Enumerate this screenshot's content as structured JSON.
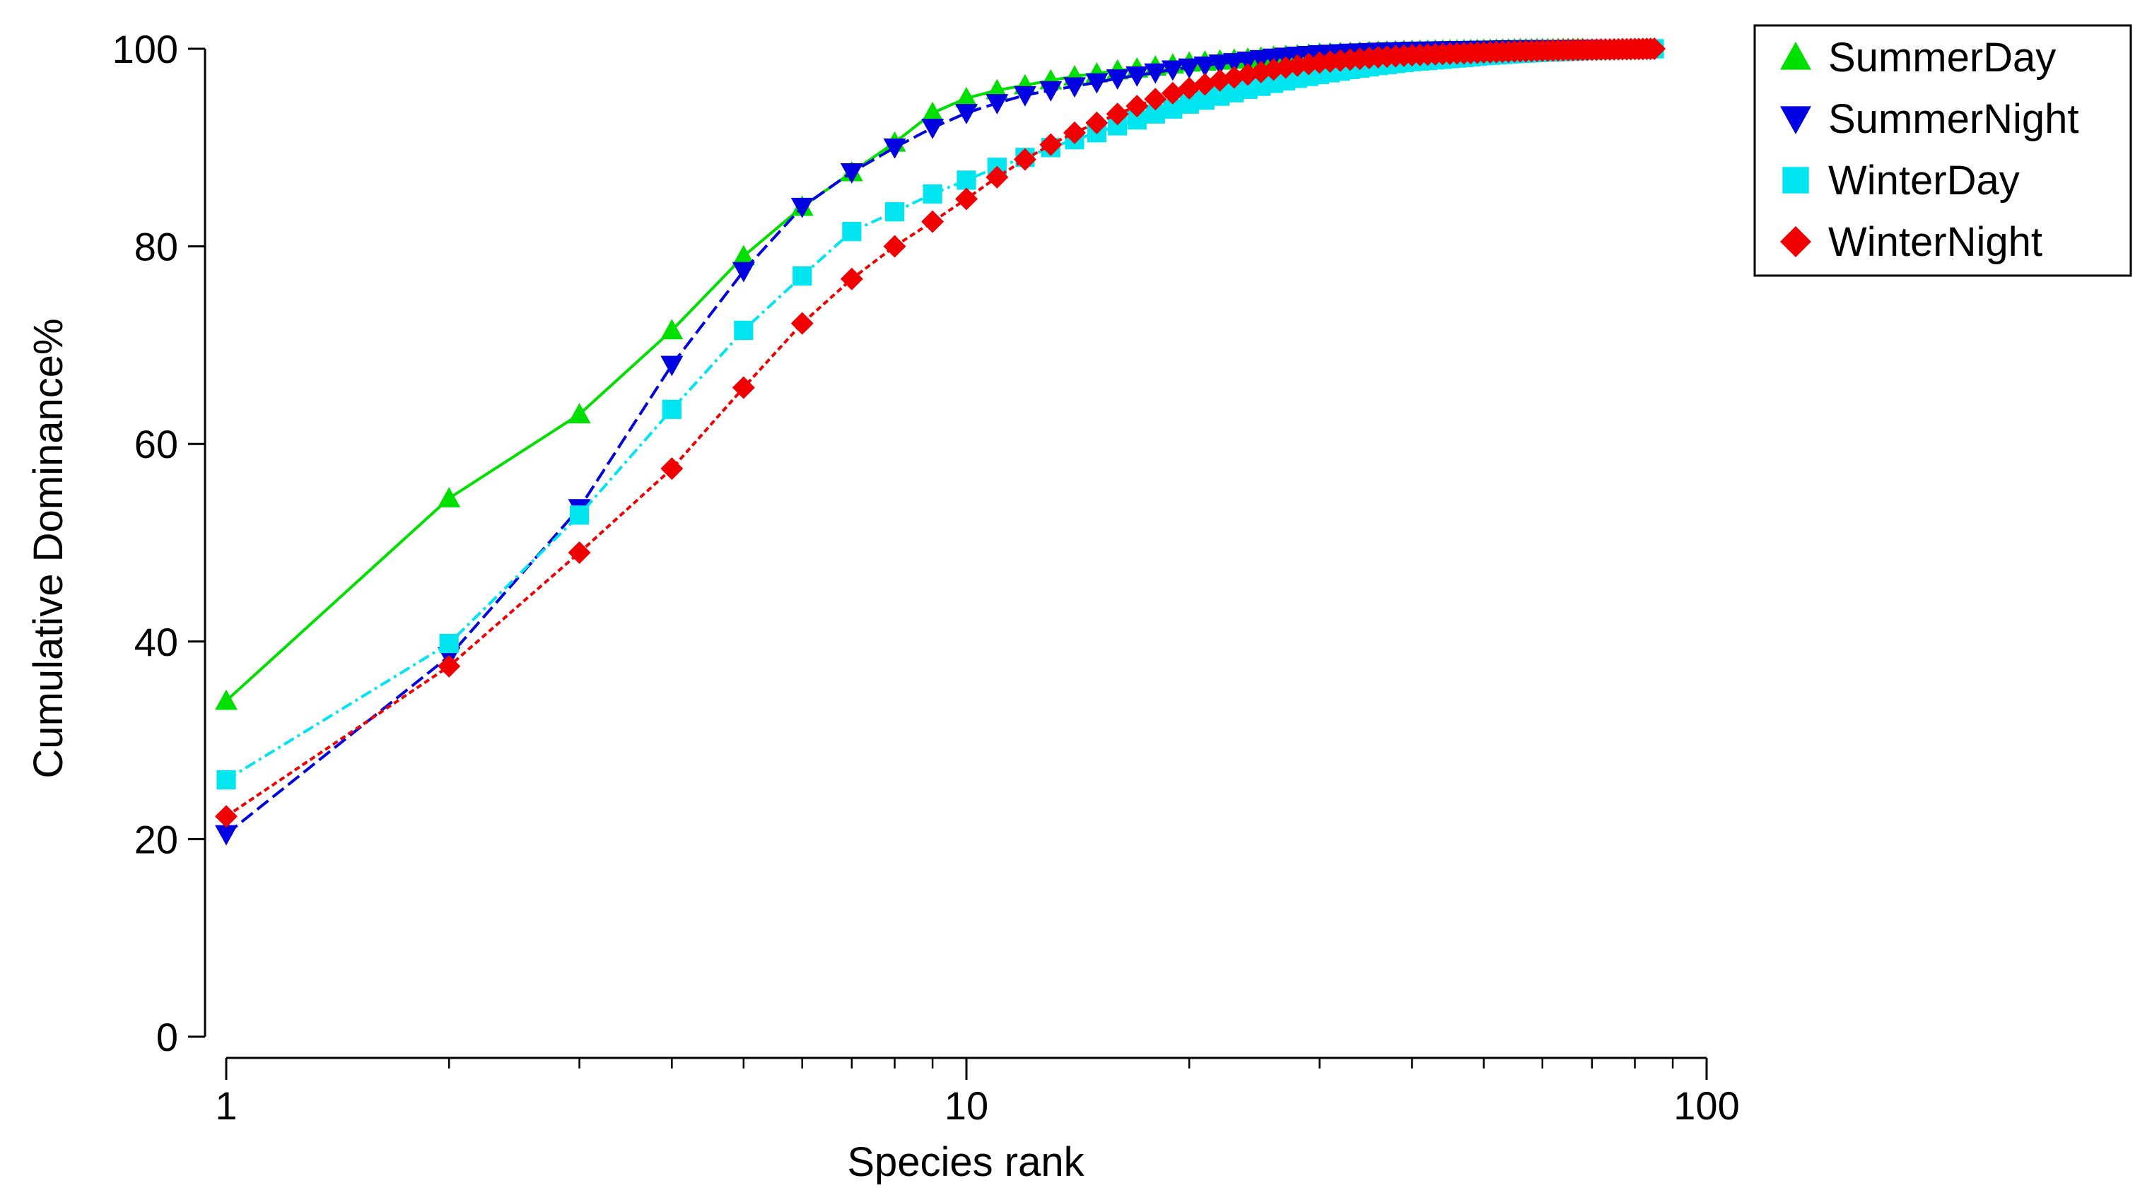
{
  "chart_data": {
    "type": "line",
    "title": "",
    "xlabel": "Species rank",
    "ylabel": "Cumulative Dominance%",
    "xscale": "log",
    "xlim": [
      1,
      100
    ],
    "ylim": [
      0,
      100
    ],
    "xticks": [
      1,
      10,
      100
    ],
    "xtick_labels": [
      "1",
      "10",
      "100"
    ],
    "yticks": [
      0,
      20,
      40,
      60,
      80,
      100
    ],
    "ytick_labels": [
      "0",
      "20",
      "40",
      "60",
      "80",
      "100"
    ],
    "grid": false,
    "legend_position": "top-right",
    "series": [
      {
        "name": "SummerDay",
        "color": "#00e000",
        "marker": "triangle-up",
        "linestyle": "solid",
        "max_rank": 68,
        "points": [
          [
            1,
            34.0
          ],
          [
            2,
            54.5
          ],
          [
            3,
            63.0
          ],
          [
            4,
            71.5
          ],
          [
            5,
            79.0
          ],
          [
            6,
            84.0
          ],
          [
            7,
            87.5
          ],
          [
            8,
            90.5
          ],
          [
            9,
            93.5
          ],
          [
            10,
            95.0
          ],
          [
            11,
            95.8
          ],
          [
            12,
            96.3
          ],
          [
            13,
            96.8
          ],
          [
            14,
            97.2
          ],
          [
            15,
            97.5
          ],
          [
            16,
            97.8
          ],
          [
            17,
            98.0
          ],
          [
            18,
            98.2
          ],
          [
            19,
            98.4
          ],
          [
            20,
            98.6
          ],
          [
            22,
            98.8
          ],
          [
            24,
            99.0
          ],
          [
            26,
            99.2
          ],
          [
            28,
            99.35
          ],
          [
            30,
            99.5
          ],
          [
            33,
            99.6
          ],
          [
            36,
            99.7
          ],
          [
            40,
            99.8
          ],
          [
            45,
            99.85
          ],
          [
            50,
            99.9
          ],
          [
            55,
            99.95
          ],
          [
            60,
            99.97
          ],
          [
            68,
            100.0
          ]
        ]
      },
      {
        "name": "SummerNight",
        "color": "#0000e0",
        "marker": "triangle-down",
        "linestyle": "dashed",
        "max_rank": 70,
        "points": [
          [
            1,
            20.5
          ],
          [
            2,
            38.5
          ],
          [
            3,
            53.5
          ],
          [
            4,
            68.0
          ],
          [
            5,
            77.5
          ],
          [
            6,
            84.0
          ],
          [
            7,
            87.5
          ],
          [
            8,
            90.0
          ],
          [
            9,
            92.0
          ],
          [
            10,
            93.5
          ],
          [
            11,
            94.5
          ],
          [
            12,
            95.3
          ],
          [
            13,
            95.8
          ],
          [
            14,
            96.2
          ],
          [
            15,
            96.6
          ],
          [
            16,
            97.0
          ],
          [
            17,
            97.3
          ],
          [
            18,
            97.6
          ],
          [
            19,
            97.9
          ],
          [
            20,
            98.1
          ],
          [
            22,
            98.5
          ],
          [
            24,
            98.8
          ],
          [
            26,
            99.1
          ],
          [
            28,
            99.3
          ],
          [
            30,
            99.45
          ],
          [
            33,
            99.6
          ],
          [
            36,
            99.7
          ],
          [
            40,
            99.8
          ],
          [
            45,
            99.85
          ],
          [
            50,
            99.9
          ],
          [
            55,
            99.95
          ],
          [
            60,
            99.97
          ],
          [
            70,
            100.0
          ]
        ]
      },
      {
        "name": "WinterDay",
        "color": "#00e5f0",
        "marker": "square",
        "linestyle": "dash-dot",
        "max_rank": 85,
        "points": [
          [
            1,
            26.0
          ],
          [
            2,
            39.8
          ],
          [
            3,
            52.8
          ],
          [
            4,
            63.5
          ],
          [
            5,
            71.5
          ],
          [
            6,
            77.0
          ],
          [
            7,
            81.5
          ],
          [
            8,
            83.5
          ],
          [
            9,
            85.3
          ],
          [
            10,
            86.7
          ],
          [
            11,
            88.0
          ],
          [
            12,
            89.0
          ],
          [
            13,
            90.0
          ],
          [
            14,
            90.8
          ],
          [
            15,
            91.5
          ],
          [
            16,
            92.2
          ],
          [
            17,
            92.8
          ],
          [
            18,
            93.4
          ],
          [
            19,
            93.9
          ],
          [
            20,
            94.4
          ],
          [
            22,
            95.2
          ],
          [
            24,
            95.9
          ],
          [
            26,
            96.5
          ],
          [
            28,
            97.0
          ],
          [
            30,
            97.4
          ],
          [
            33,
            97.9
          ],
          [
            36,
            98.3
          ],
          [
            40,
            98.7
          ],
          [
            45,
            99.0
          ],
          [
            50,
            99.3
          ],
          [
            55,
            99.5
          ],
          [
            60,
            99.65
          ],
          [
            65,
            99.75
          ],
          [
            70,
            99.85
          ],
          [
            75,
            99.9
          ],
          [
            80,
            99.95
          ],
          [
            85,
            100.0
          ]
        ]
      },
      {
        "name": "WinterNight",
        "color": "#f00000",
        "marker": "diamond",
        "linestyle": "dotted",
        "max_rank": 85,
        "points": [
          [
            1,
            22.3
          ],
          [
            2,
            37.5
          ],
          [
            3,
            49.0
          ],
          [
            4,
            57.5
          ],
          [
            5,
            65.7
          ],
          [
            6,
            72.2
          ],
          [
            7,
            76.7
          ],
          [
            8,
            80.0
          ],
          [
            9,
            82.5
          ],
          [
            10,
            84.8
          ],
          [
            11,
            87.0
          ],
          [
            12,
            88.8
          ],
          [
            13,
            90.3
          ],
          [
            14,
            91.5
          ],
          [
            15,
            92.5
          ],
          [
            16,
            93.4
          ],
          [
            17,
            94.2
          ],
          [
            18,
            94.9
          ],
          [
            19,
            95.5
          ],
          [
            20,
            96.0
          ],
          [
            22,
            96.8
          ],
          [
            24,
            97.4
          ],
          [
            26,
            97.9
          ],
          [
            28,
            98.3
          ],
          [
            30,
            98.6
          ],
          [
            33,
            98.9
          ],
          [
            36,
            99.15
          ],
          [
            40,
            99.35
          ],
          [
            45,
            99.5
          ],
          [
            50,
            99.62
          ],
          [
            55,
            99.72
          ],
          [
            60,
            99.8
          ],
          [
            65,
            99.86
          ],
          [
            70,
            99.9
          ],
          [
            75,
            99.94
          ],
          [
            80,
            99.97
          ],
          [
            85,
            100.0
          ]
        ]
      }
    ]
  }
}
